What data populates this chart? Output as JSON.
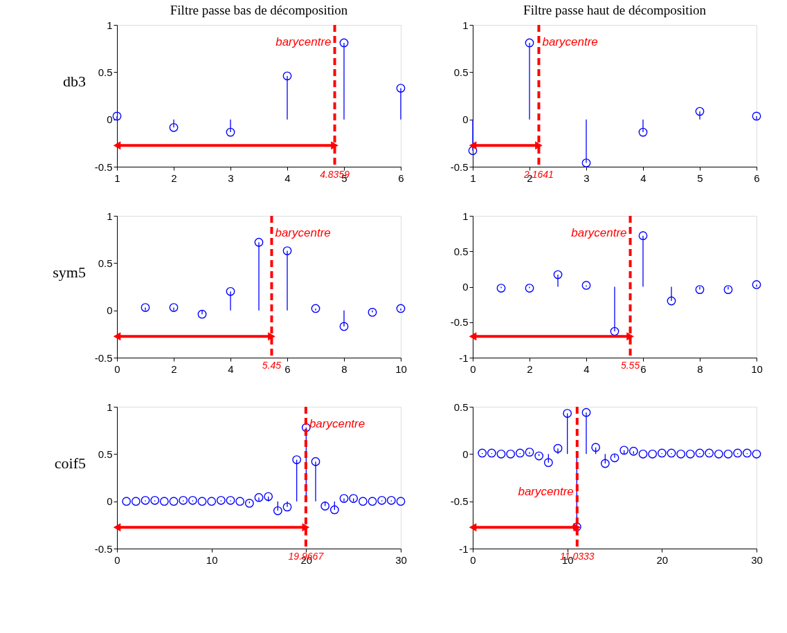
{
  "chart_data": [
    {
      "type": "lollipop",
      "title": "Filtre passe bas de décomposition",
      "ylabel": "db3",
      "x": [
        1,
        2,
        3,
        4,
        5,
        6
      ],
      "series": [
        {
          "color": "#0000ff",
          "values": [
            0.035,
            -0.085,
            -0.135,
            0.46,
            0.81,
            0.33
          ]
        }
      ],
      "xlim": [
        1,
        6
      ],
      "xticks": [
        1,
        2,
        3,
        4,
        5,
        6
      ],
      "ylim": [
        -0.5,
        1
      ],
      "yticks": [
        -0.5,
        0,
        0.5,
        1
      ],
      "marker": "circle",
      "ref_lines": [
        {
          "axis": "x",
          "value": 4.8359,
          "label": "4.8359",
          "color": "#ff0000",
          "line_style": "dashed"
        }
      ],
      "annotations": [
        "barycentre"
      ]
    },
    {
      "type": "lollipop",
      "title": "Filtre passe haut de décomposition",
      "x": [
        1,
        2,
        3,
        4,
        5,
        6
      ],
      "series": [
        {
          "color": "#0000ff",
          "values": [
            -0.33,
            0.81,
            -0.46,
            -0.135,
            0.085,
            0.035
          ]
        }
      ],
      "xlim": [
        1,
        6
      ],
      "xticks": [
        1,
        2,
        3,
        4,
        5,
        6
      ],
      "ylim": [
        -0.5,
        1
      ],
      "yticks": [
        -0.5,
        0,
        0.5,
        1
      ],
      "marker": "circle",
      "ref_lines": [
        {
          "axis": "x",
          "value": 2.1641,
          "label": "2.1641",
          "color": "#ff0000",
          "line_style": "dashed"
        }
      ],
      "annotations": [
        "barycentre"
      ]
    },
    {
      "type": "lollipop",
      "ylabel": "sym5",
      "x": [
        1,
        2,
        3,
        4,
        5,
        6,
        7,
        8,
        9,
        10
      ],
      "series": [
        {
          "color": "#0000ff",
          "values": [
            0.03,
            0.03,
            -0.04,
            0.2,
            0.72,
            0.63,
            0.02,
            -0.17,
            -0.02,
            0.02
          ]
        }
      ],
      "xlim": [
        0,
        10
      ],
      "xticks": [
        0,
        2,
        4,
        6,
        8,
        10
      ],
      "ylim": [
        -0.5,
        1
      ],
      "yticks": [
        -0.5,
        0,
        0.5,
        1
      ],
      "marker": "circle",
      "ref_lines": [
        {
          "axis": "x",
          "value": 5.45,
          "label": "5.45",
          "color": "#ff0000",
          "line_style": "dashed"
        }
      ],
      "annotations": [
        "barycentre"
      ]
    },
    {
      "type": "lollipop",
      "x": [
        1,
        2,
        3,
        4,
        5,
        6,
        7,
        8,
        9,
        10
      ],
      "series": [
        {
          "color": "#0000ff",
          "values": [
            -0.02,
            -0.02,
            0.17,
            0.02,
            -0.63,
            0.72,
            -0.2,
            -0.04,
            -0.04,
            0.03
          ]
        }
      ],
      "xlim": [
        0,
        10
      ],
      "xticks": [
        0,
        2,
        4,
        6,
        8,
        10
      ],
      "ylim": [
        -1,
        1
      ],
      "yticks": [
        -1,
        -0.5,
        0,
        0.5,
        1
      ],
      "marker": "circle",
      "ref_lines": [
        {
          "axis": "x",
          "value": 5.55,
          "label": "5.55",
          "color": "#ff0000",
          "line_style": "dashed"
        }
      ],
      "annotations": [
        "barycentre"
      ]
    },
    {
      "type": "lollipop",
      "ylabel": "coif5",
      "x": [
        1,
        2,
        3,
        4,
        5,
        6,
        7,
        8,
        9,
        10,
        11,
        12,
        13,
        14,
        15,
        16,
        17,
        18,
        19,
        20,
        21,
        22,
        23,
        24,
        25,
        26,
        27,
        28,
        29,
        30
      ],
      "series": [
        {
          "color": "#0000ff",
          "values": [
            0,
            0,
            0.01,
            0.01,
            0,
            0,
            0.01,
            0.01,
            0,
            0,
            0.01,
            0.01,
            0,
            -0.02,
            0.04,
            0.05,
            -0.1,
            -0.06,
            0.44,
            0.78,
            0.42,
            -0.05,
            -0.09,
            0.03,
            0.03,
            0,
            0,
            0.01,
            0.01,
            0
          ]
        }
      ],
      "xlim": [
        0,
        30
      ],
      "xticks": [
        0,
        10,
        20,
        30
      ],
      "ylim": [
        -0.5,
        1
      ],
      "yticks": [
        -0.5,
        0,
        0.5,
        1
      ],
      "marker": "circle",
      "ref_lines": [
        {
          "axis": "x",
          "value": 19.9667,
          "label": "19.9667",
          "color": "#ff0000",
          "line_style": "dashed"
        }
      ],
      "annotations": [
        "barycentre"
      ]
    },
    {
      "type": "lollipop",
      "x": [
        1,
        2,
        3,
        4,
        5,
        6,
        7,
        8,
        9,
        10,
        11,
        12,
        13,
        14,
        15,
        16,
        17,
        18,
        19,
        20,
        21,
        22,
        23,
        24,
        25,
        26,
        27,
        28,
        29,
        30
      ],
      "series": [
        {
          "color": "#0000ff",
          "values": [
            0.01,
            0.01,
            0,
            0,
            0.01,
            0.02,
            -0.02,
            -0.09,
            0.06,
            0.43,
            -0.77,
            0.44,
            0.07,
            -0.1,
            -0.04,
            0.04,
            0.03,
            0,
            0,
            0.01,
            0.01,
            0,
            0,
            0.01,
            0.01,
            0,
            0,
            0.01,
            0.01,
            0
          ]
        }
      ],
      "xlim": [
        0,
        30
      ],
      "xticks": [
        0,
        10,
        20,
        30
      ],
      "ylim": [
        -1,
        0.5
      ],
      "yticks": [
        -1,
        -0.5,
        0,
        0.5
      ],
      "marker": "circle",
      "ref_lines": [
        {
          "axis": "x",
          "value": 11.0333,
          "label": "11.0333",
          "color": "#ff0000",
          "line_style": "dashed"
        }
      ],
      "annotations": [
        "barycentre"
      ]
    }
  ]
}
